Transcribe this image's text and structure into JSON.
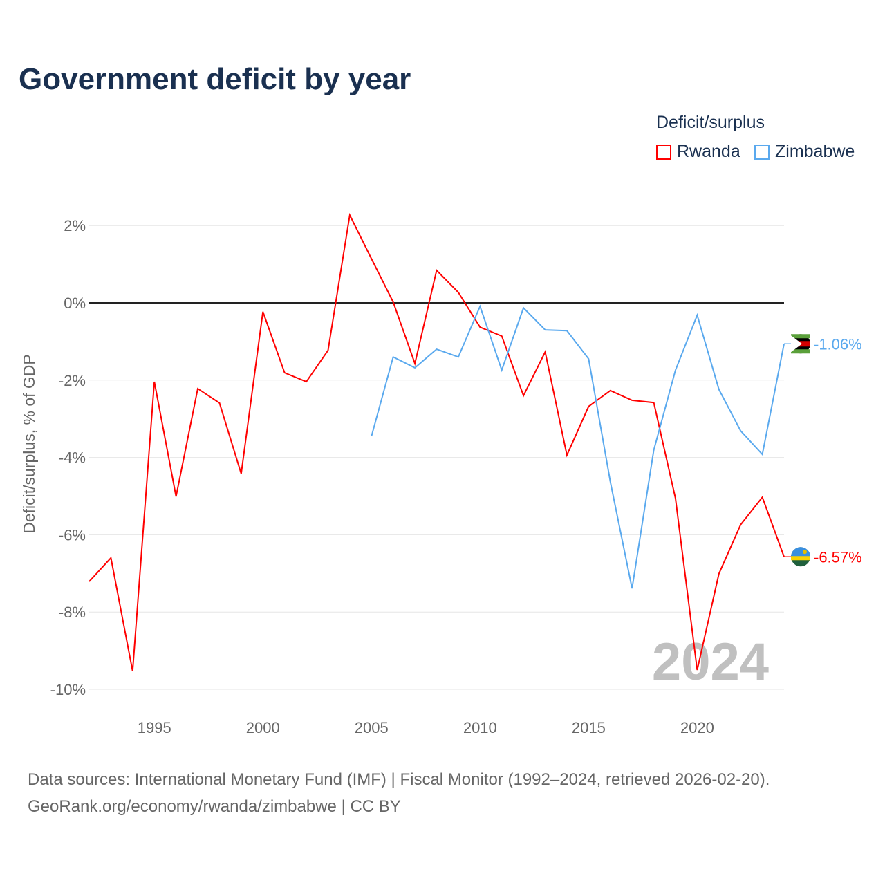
{
  "chart_data": {
    "type": "line",
    "title": "Government deficit by year",
    "ylabel": "Deficit/surplus, % of GDP",
    "xlabel": "",
    "legend_title": "Deficit/surplus",
    "legend_position": "top-right",
    "xlim": [
      1992,
      2024
    ],
    "ylim": [
      -10,
      2
    ],
    "x_ticks": [
      1995,
      2000,
      2005,
      2010,
      2015,
      2020
    ],
    "y_ticks": [
      {
        "v": 2,
        "label": "2%"
      },
      {
        "v": 0,
        "label": "0%"
      },
      {
        "v": -2,
        "label": "-2%"
      },
      {
        "v": -4,
        "label": "-4%"
      },
      {
        "v": -6,
        "label": "-6%"
      },
      {
        "v": -8,
        "label": "-8%"
      },
      {
        "v": -10,
        "label": "-10%"
      }
    ],
    "year_watermark": "2024",
    "series": [
      {
        "name": "Rwanda",
        "color": "#ff0000",
        "end_label": "-6.57%",
        "start_year": 1992,
        "values": [
          -7.21,
          -6.6,
          -9.53,
          -2.04,
          -5.01,
          -2.22,
          -2.59,
          -4.42,
          -0.23,
          -1.81,
          -2.04,
          -1.23,
          2.27,
          1.14,
          0.02,
          -1.57,
          0.84,
          0.27,
          -0.63,
          -0.86,
          -2.4,
          -1.27,
          -3.94,
          -2.68,
          -2.27,
          -2.52,
          -2.58,
          -5.06,
          -9.5,
          -7.01,
          -5.74,
          -5.03,
          -6.57
        ]
      },
      {
        "name": "Zimbabwe",
        "color": "#5aa9ee",
        "end_label": "-1.06%",
        "start_year": 2005,
        "values": [
          -3.45,
          -1.4,
          -1.68,
          -1.2,
          -1.4,
          -0.09,
          -1.74,
          -0.13,
          -0.7,
          -0.72,
          -1.45,
          -4.63,
          -7.39,
          -3.81,
          -1.74,
          -0.32,
          -2.24,
          -3.31,
          -3.92,
          -1.06
        ]
      }
    ]
  },
  "source_line1": "Data sources: International Monetary Fund (IMF) | Fiscal Monitor (1992–2024, retrieved 2026-02-20).",
  "source_line2": "GeoRank.org/economy/rwanda/zimbabwe | CC BY"
}
